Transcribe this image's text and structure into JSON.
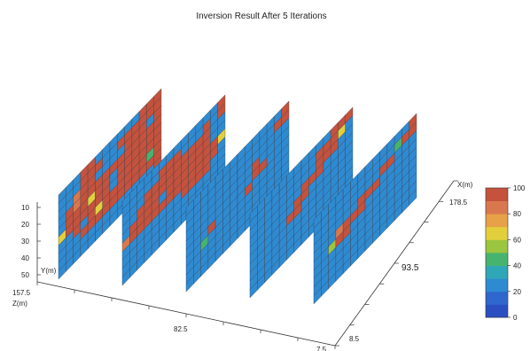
{
  "chart_data": {
    "type": "heatmap",
    "title": "Inversion Result After 5 Iterations",
    "axis_labels": {
      "y_axis": "Y(m)",
      "z_axis": "Z(m)",
      "x_axis": "X(m)"
    },
    "vertical_ticks": [
      "10",
      "20",
      "30",
      "40",
      "50"
    ],
    "z_ticks": [
      "157.5",
      "82.5",
      "7.5"
    ],
    "x_ticks": [
      "178.5",
      "93.5",
      "8.5"
    ],
    "colorbar": {
      "ticks": [
        "100",
        "80",
        "60",
        "40",
        "20",
        "0"
      ],
      "range": [
        0,
        100
      ],
      "colors": [
        "#2b4fc0",
        "#2f67cc",
        "#2e8bd2",
        "#30a7b6",
        "#46b46e",
        "#9bc63f",
        "#e3cf3c",
        "#e7a148",
        "#d9784e",
        "#c4523d"
      ]
    },
    "slices": [
      {
        "grid": [
          [
            25,
            25,
            25,
            95,
            95,
            25,
            25,
            25,
            25,
            25,
            25,
            95,
            95,
            95
          ],
          [
            25,
            25,
            25,
            95,
            95,
            95,
            25,
            25,
            95,
            95,
            95,
            95,
            95,
            95
          ],
          [
            25,
            25,
            85,
            95,
            95,
            25,
            25,
            25,
            25,
            95,
            95,
            95,
            25,
            95
          ],
          [
            25,
            95,
            85,
            95,
            95,
            95,
            95,
            95,
            95,
            95,
            95,
            95,
            95,
            95
          ],
          [
            25,
            95,
            95,
            95,
            60,
            95,
            95,
            25,
            95,
            95,
            95,
            95,
            95,
            95
          ],
          [
            60,
            95,
            95,
            95,
            95,
            95,
            95,
            25,
            95,
            95,
            95,
            95,
            95,
            95
          ],
          [
            25,
            25,
            95,
            25,
            95,
            60,
            95,
            95,
            95,
            95,
            95,
            95,
            40,
            95
          ],
          [
            25,
            25,
            25,
            95,
            95,
            95,
            95,
            95,
            95,
            95,
            95,
            95,
            95,
            95
          ],
          [
            25,
            25,
            25,
            25,
            25,
            25,
            25,
            25,
            25,
            25,
            25,
            25,
            25,
            95
          ],
          [
            25,
            25,
            25,
            25,
            25,
            25,
            25,
            25,
            25,
            25,
            25,
            25,
            25,
            95
          ]
        ]
      },
      {
        "grid": [
          [
            25,
            25,
            25,
            25,
            25,
            25,
            25,
            25,
            25,
            25,
            25,
            25,
            25,
            95
          ],
          [
            25,
            25,
            25,
            25,
            25,
            95,
            95,
            95,
            25,
            25,
            25,
            95,
            25,
            95
          ],
          [
            25,
            25,
            25,
            95,
            95,
            95,
            95,
            95,
            95,
            95,
            95,
            95,
            25,
            25
          ],
          [
            25,
            25,
            95,
            95,
            95,
            95,
            95,
            95,
            95,
            95,
            95,
            95,
            25,
            25
          ],
          [
            25,
            95,
            95,
            95,
            95,
            25,
            95,
            95,
            95,
            95,
            95,
            95,
            95,
            60
          ],
          [
            85,
            95,
            95,
            95,
            95,
            95,
            95,
            95,
            95,
            95,
            95,
            95,
            95,
            25
          ],
          [
            25,
            25,
            25,
            25,
            25,
            25,
            25,
            25,
            95,
            95,
            95,
            95,
            25,
            25
          ],
          [
            25,
            25,
            25,
            25,
            25,
            25,
            25,
            25,
            25,
            25,
            25,
            25,
            25,
            25
          ],
          [
            25,
            25,
            25,
            25,
            25,
            25,
            25,
            25,
            25,
            25,
            25,
            25,
            25,
            25
          ],
          [
            25,
            25,
            25,
            25,
            25,
            25,
            25,
            25,
            25,
            25,
            25,
            25,
            25,
            25
          ]
        ]
      },
      {
        "grid": [
          [
            25,
            25,
            25,
            25,
            25,
            25,
            25,
            25,
            25,
            25,
            25,
            25,
            25,
            95
          ],
          [
            25,
            25,
            25,
            25,
            25,
            25,
            25,
            25,
            25,
            25,
            25,
            25,
            95,
            95
          ],
          [
            25,
            25,
            25,
            25,
            25,
            25,
            25,
            25,
            25,
            25,
            25,
            25,
            25,
            25
          ],
          [
            25,
            25,
            25,
            25,
            25,
            25,
            25,
            25,
            25,
            95,
            25,
            25,
            25,
            25
          ],
          [
            25,
            25,
            25,
            25,
            25,
            25,
            25,
            25,
            25,
            95,
            95,
            25,
            25,
            25
          ],
          [
            25,
            25,
            25,
            95,
            25,
            25,
            25,
            25,
            95,
            25,
            25,
            25,
            25,
            25
          ],
          [
            25,
            25,
            45,
            25,
            25,
            25,
            25,
            25,
            25,
            25,
            25,
            25,
            25,
            25
          ],
          [
            25,
            25,
            25,
            25,
            25,
            25,
            25,
            25,
            25,
            25,
            25,
            25,
            25,
            25
          ],
          [
            25,
            25,
            25,
            25,
            25,
            25,
            25,
            25,
            25,
            25,
            25,
            25,
            25,
            25
          ],
          [
            25,
            25,
            25,
            25,
            25,
            25,
            25,
            25,
            25,
            25,
            25,
            25,
            25,
            25
          ]
        ]
      },
      {
        "grid": [
          [
            25,
            25,
            25,
            25,
            25,
            25,
            25,
            25,
            25,
            25,
            25,
            95,
            95,
            95
          ],
          [
            25,
            25,
            25,
            25,
            25,
            25,
            25,
            25,
            25,
            95,
            95,
            95,
            60,
            25
          ],
          [
            25,
            25,
            25,
            25,
            25,
            25,
            25,
            25,
            25,
            95,
            95,
            95,
            25,
            25
          ],
          [
            25,
            25,
            25,
            25,
            25,
            25,
            25,
            95,
            95,
            95,
            25,
            25,
            25,
            25
          ],
          [
            25,
            25,
            25,
            25,
            25,
            25,
            95,
            95,
            25,
            25,
            25,
            25,
            25,
            25
          ],
          [
            25,
            25,
            25,
            25,
            25,
            95,
            95,
            25,
            25,
            25,
            25,
            25,
            25,
            25
          ],
          [
            25,
            25,
            25,
            25,
            25,
            25,
            25,
            25,
            25,
            25,
            25,
            25,
            25,
            25
          ],
          [
            25,
            25,
            25,
            25,
            25,
            25,
            25,
            25,
            25,
            25,
            25,
            25,
            25,
            25
          ],
          [
            25,
            25,
            25,
            25,
            25,
            25,
            25,
            25,
            25,
            25,
            25,
            25,
            25,
            25
          ],
          [
            25,
            25,
            25,
            25,
            25,
            25,
            25,
            25,
            25,
            25,
            25,
            25,
            25,
            25
          ]
        ]
      },
      {
        "grid": [
          [
            25,
            25,
            25,
            25,
            25,
            25,
            25,
            25,
            25,
            25,
            25,
            25,
            25,
            95
          ],
          [
            25,
            25,
            25,
            25,
            25,
            25,
            25,
            25,
            25,
            25,
            25,
            40,
            95,
            95
          ],
          [
            25,
            25,
            25,
            25,
            25,
            25,
            25,
            25,
            25,
            95,
            95,
            25,
            25,
            25
          ],
          [
            25,
            25,
            25,
            25,
            25,
            25,
            95,
            95,
            95,
            25,
            25,
            25,
            25,
            25
          ],
          [
            25,
            25,
            25,
            85,
            95,
            95,
            95,
            25,
            25,
            25,
            25,
            25,
            25,
            25
          ],
          [
            25,
            25,
            50,
            95,
            95,
            25,
            25,
            25,
            25,
            25,
            25,
            25,
            25,
            25
          ],
          [
            25,
            25,
            25,
            25,
            25,
            25,
            25,
            25,
            25,
            25,
            25,
            25,
            25,
            25
          ],
          [
            25,
            25,
            25,
            25,
            25,
            25,
            25,
            25,
            25,
            25,
            25,
            25,
            25,
            25
          ],
          [
            25,
            25,
            25,
            25,
            25,
            25,
            25,
            25,
            25,
            25,
            25,
            25,
            25,
            25
          ],
          [
            25,
            25,
            25,
            25,
            25,
            25,
            25,
            25,
            25,
            25,
            25,
            25,
            25,
            25
          ]
        ]
      }
    ]
  }
}
